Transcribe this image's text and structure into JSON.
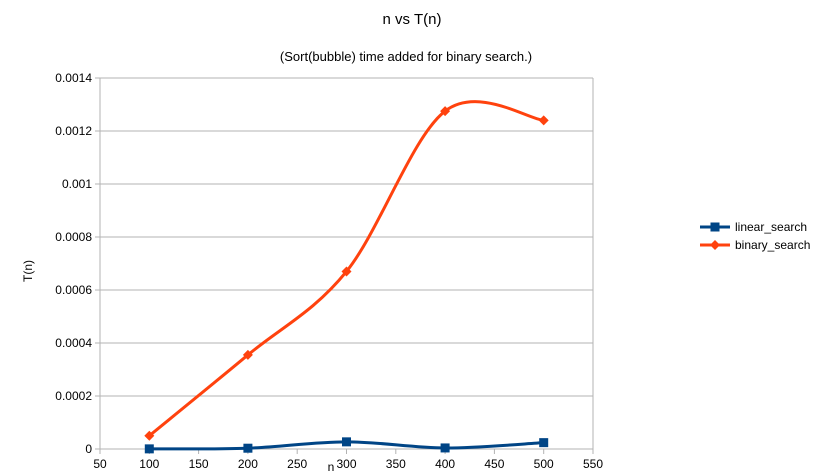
{
  "chart_data": {
    "type": "line",
    "title": "n vs T(n)",
    "subtitle": "(Sort(bubble) time added for binary search.)",
    "xlabel": "n",
    "ylabel": "T(n)",
    "xlim": [
      50,
      550
    ],
    "ylim": [
      0,
      0.0014
    ],
    "x_ticks": [
      50,
      100,
      150,
      200,
      250,
      300,
      350,
      400,
      450,
      500,
      550
    ],
    "y_ticks": [
      0,
      0.0002,
      0.0004,
      0.0006,
      0.0008,
      0.001,
      0.0012,
      0.0014
    ],
    "x_tick_labels": [
      "50",
      "100",
      "150",
      "200",
      "250",
      "300",
      "350",
      "400",
      "450",
      "500",
      "550"
    ],
    "y_tick_labels": [
      "0",
      "0.0002",
      "0.0004",
      "0.0006",
      "0.0008",
      "0.001",
      "0.0012",
      "0.0014"
    ],
    "grid": "horizontal",
    "legend_position": "right",
    "smooth": true,
    "x": [
      100,
      200,
      300,
      400,
      500
    ],
    "series": [
      {
        "name": "linear_search",
        "values": [
          5e-07,
          3e-06,
          2.7e-05,
          4e-06,
          2.4e-05
        ],
        "color": "#004586",
        "marker": "square"
      },
      {
        "name": "binary_search",
        "values": [
          5e-05,
          0.000355,
          0.00067,
          0.001275,
          0.00124
        ],
        "color": "#ff420e",
        "marker": "diamond"
      }
    ]
  }
}
